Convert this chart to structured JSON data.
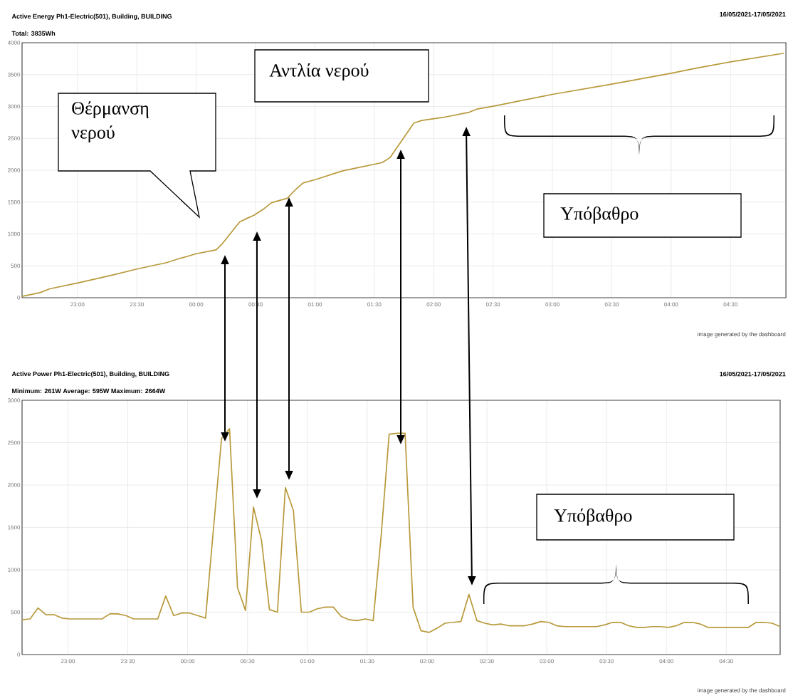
{
  "chart_data": [
    {
      "type": "line",
      "title": "Active Energy Ph1-Electric(501), Building, BUILDING",
      "subtitle": "Total: 3835Wh",
      "annotations": [
        "16/05/2021-17/05/2021",
        "Θέρμανση νερού",
        "Αντλία νερού",
        "Υπόβαθρο",
        "image generated by the dashboard"
      ],
      "x": [
        "2021-05-16T22:32",
        "2021-05-16T22:41",
        "2021-05-16T22:46",
        "2021-05-16T23:00",
        "2021-05-16T23:17",
        "2021-05-16T23:30",
        "2021-05-16T23:45",
        "2021-05-16T23:50",
        "2021-05-17T00:00",
        "2021-05-17T00:10",
        "2021-05-17T00:13",
        "2021-05-17T00:22",
        "2021-05-17T00:26",
        "2021-05-17T00:29",
        "2021-05-17T00:34",
        "2021-05-17T00:38",
        "2021-05-17T00:46",
        "2021-05-17T00:50",
        "2021-05-17T00:54",
        "2021-05-17T01:01",
        "2021-05-17T01:14",
        "2021-05-17T01:34",
        "2021-05-17T01:38",
        "2021-05-17T01:50",
        "2021-05-17T01:54",
        "2021-05-17T02:05",
        "2021-05-17T02:18",
        "2021-05-17T02:22",
        "2021-05-17T02:31",
        "2021-05-17T03:00",
        "2021-05-17T03:30",
        "2021-05-17T04:00",
        "2021-05-17T04:11",
        "2021-05-17T04:30",
        "2021-05-17T04:57"
      ],
      "values": [
        20,
        80,
        140,
        230,
        350,
        450,
        550,
        600,
        690,
        750,
        840,
        1190,
        1250,
        1290,
        1390,
        1490,
        1560,
        1690,
        1800,
        1860,
        1990,
        2120,
        2200,
        2740,
        2780,
        2830,
        2910,
        2960,
        3010,
        3190,
        3350,
        3520,
        3590,
        3700,
        3835
      ],
      "color": "#b8993a",
      "xlim": [
        "2021-05-16T22:32",
        "2021-05-17T04:58"
      ],
      "ylim": [
        0,
        4000
      ],
      "xticks": [
        {
          "value": "2021-05-16T23:00",
          "label": "23:00"
        },
        {
          "value": "2021-05-16T23:30",
          "label": "23:30"
        },
        {
          "value": "2021-05-17T00:00",
          "label": "00:00"
        },
        {
          "value": "2021-05-17T00:30",
          "label": "00:30"
        },
        {
          "value": "2021-05-17T01:00",
          "label": "01:00"
        },
        {
          "value": "2021-05-17T01:30",
          "label": "01:30"
        },
        {
          "value": "2021-05-17T02:00",
          "label": "02:00"
        },
        {
          "value": "2021-05-17T02:30",
          "label": "02:30"
        },
        {
          "value": "2021-05-17T03:00",
          "label": "03:00"
        },
        {
          "value": "2021-05-17T03:30",
          "label": "03:30"
        },
        {
          "value": "2021-05-17T04:00",
          "label": "04:00"
        },
        {
          "value": "2021-05-17T04:30",
          "label": "04:30"
        }
      ],
      "yticks": [
        0,
        500,
        1000,
        1500,
        2000,
        2500,
        3000,
        3500,
        4000
      ],
      "grid": true
    },
    {
      "type": "line",
      "title": "Active Power Ph1-Electric(501), Building, BUILDING",
      "subtitle": "Minimum: 261W Average: 595W Maximum: 2664W",
      "annotations": [
        "16/05/2021-17/05/2021",
        "Υπόβαθρο",
        "image generated by the dashboard"
      ],
      "x": [
        "2021-05-16T22:37",
        "2021-05-16T22:41",
        "2021-05-16T22:45",
        "2021-05-16T22:49",
        "2021-05-16T22:53",
        "2021-05-16T22:57",
        "2021-05-16T23:01",
        "2021-05-16T23:05",
        "2021-05-16T23:09",
        "2021-05-16T23:13",
        "2021-05-16T23:17",
        "2021-05-16T23:21",
        "2021-05-16T23:25",
        "2021-05-16T23:29",
        "2021-05-16T23:33",
        "2021-05-16T23:37",
        "2021-05-16T23:41",
        "2021-05-16T23:45",
        "2021-05-16T23:49",
        "2021-05-16T23:53",
        "2021-05-16T23:57",
        "2021-05-17T00:01",
        "2021-05-17T00:05",
        "2021-05-17T00:09",
        "2021-05-17T00:13",
        "2021-05-17T00:17",
        "2021-05-17T00:21",
        "2021-05-17T00:25",
        "2021-05-17T00:29",
        "2021-05-17T00:33",
        "2021-05-17T00:37",
        "2021-05-17T00:41",
        "2021-05-17T00:45",
        "2021-05-17T00:49",
        "2021-05-17T00:53",
        "2021-05-17T00:57",
        "2021-05-17T01:01",
        "2021-05-17T01:05",
        "2021-05-17T01:09",
        "2021-05-17T01:13",
        "2021-05-17T01:17",
        "2021-05-17T01:21",
        "2021-05-17T01:25",
        "2021-05-17T01:29",
        "2021-05-17T01:33",
        "2021-05-17T01:37",
        "2021-05-17T01:41",
        "2021-05-17T01:45",
        "2021-05-17T01:49",
        "2021-05-17T01:53",
        "2021-05-17T01:57",
        "2021-05-17T02:01",
        "2021-05-17T02:05",
        "2021-05-17T02:09",
        "2021-05-17T02:13",
        "2021-05-17T02:17",
        "2021-05-17T02:21",
        "2021-05-17T02:25",
        "2021-05-17T02:29",
        "2021-05-17T02:33",
        "2021-05-17T02:37",
        "2021-05-17T02:41",
        "2021-05-17T02:45",
        "2021-05-17T02:49",
        "2021-05-17T02:53",
        "2021-05-17T02:57",
        "2021-05-17T03:01",
        "2021-05-17T03:05",
        "2021-05-17T03:09",
        "2021-05-17T03:13",
        "2021-05-17T03:17",
        "2021-05-17T03:21",
        "2021-05-17T03:25",
        "2021-05-17T03:29",
        "2021-05-17T03:33",
        "2021-05-17T03:37",
        "2021-05-17T03:41",
        "2021-05-17T03:45",
        "2021-05-17T03:49",
        "2021-05-17T03:53",
        "2021-05-17T03:57",
        "2021-05-17T04:01",
        "2021-05-17T04:05",
        "2021-05-17T04:09",
        "2021-05-17T04:13",
        "2021-05-17T04:17",
        "2021-05-17T04:21",
        "2021-05-17T04:25",
        "2021-05-17T04:29",
        "2021-05-17T04:33",
        "2021-05-17T04:37",
        "2021-05-17T04:41",
        "2021-05-17T04:45",
        "2021-05-17T04:49",
        "2021-05-17T04:53",
        "2021-05-17T04:57"
      ],
      "values": [
        410,
        420,
        550,
        470,
        470,
        430,
        420,
        420,
        420,
        420,
        420,
        480,
        480,
        460,
        420,
        420,
        420,
        420,
        690,
        460,
        490,
        490,
        460,
        430,
        1500,
        2550,
        2664,
        790,
        520,
        1740,
        1350,
        530,
        500,
        1970,
        1700,
        500,
        500,
        540,
        560,
        560,
        450,
        410,
        400,
        420,
        400,
        1400,
        2600,
        2610,
        2610,
        560,
        280,
        261,
        310,
        370,
        380,
        390,
        710,
        400,
        370,
        350,
        360,
        340,
        340,
        340,
        360,
        390,
        380,
        340,
        330,
        330,
        330,
        330,
        330,
        350,
        380,
        380,
        340,
        320,
        320,
        330,
        330,
        320,
        340,
        380,
        380,
        360,
        320,
        320,
        320,
        320,
        320,
        320,
        380,
        380,
        370,
        330
      ],
      "color": "#b8993a",
      "xlim": [
        "2021-05-16T22:37",
        "2021-05-17T04:57"
      ],
      "ylim": [
        0,
        3000
      ],
      "xticks": [
        {
          "value": "2021-05-16T23:00",
          "label": "23:00"
        },
        {
          "value": "2021-05-16T23:30",
          "label": "23:30"
        },
        {
          "value": "2021-05-17T00:00",
          "label": "00:00"
        },
        {
          "value": "2021-05-17T00:30",
          "label": "00:30"
        },
        {
          "value": "2021-05-17T01:00",
          "label": "01:00"
        },
        {
          "value": "2021-05-17T01:30",
          "label": "01:30"
        },
        {
          "value": "2021-05-17T02:00",
          "label": "02:00"
        },
        {
          "value": "2021-05-17T02:30",
          "label": "02:30"
        },
        {
          "value": "2021-05-17T03:00",
          "label": "03:00"
        },
        {
          "value": "2021-05-17T03:30",
          "label": "03:30"
        },
        {
          "value": "2021-05-17T04:00",
          "label": "04:00"
        },
        {
          "value": "2021-05-17T04:30",
          "label": "04:30"
        }
      ],
      "yticks": [
        0,
        500,
        1000,
        1500,
        2000,
        2500,
        3000
      ],
      "grid": true
    }
  ]
}
